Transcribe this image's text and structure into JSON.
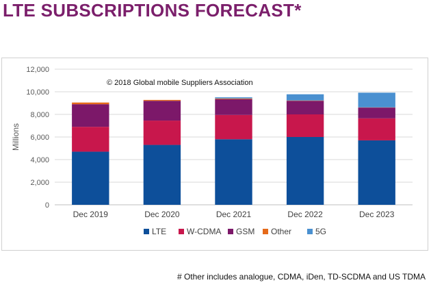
{
  "page": {
    "title": "LTE SUBSCRIPTIONS FORECAST*",
    "footnote": "# Other includes analogue, CDMA, iDen, TD-SCDMA and US TDMA"
  },
  "chart_data": {
    "type": "bar",
    "stacked": true,
    "title": "",
    "annotation": "© 2018 Global mobile Suppliers Association",
    "xlabel": "",
    "ylabel": "Millions",
    "ylim": [
      0,
      12000
    ],
    "yticks": [
      0,
      2000,
      4000,
      6000,
      8000,
      10000,
      12000
    ],
    "ytick_labels": [
      "0",
      "2,000",
      "4,000",
      "6,000",
      "8,000",
      "10,000",
      "12,000"
    ],
    "grid": true,
    "legend_position": "bottom-center",
    "categories": [
      "Dec 2019",
      "Dec 2020",
      "Dec 2021",
      "Dec 2022",
      "Dec 2023"
    ],
    "series": [
      {
        "name": "LTE",
        "color": "#0d4f9a",
        "values": [
          4700,
          5300,
          5800,
          6000,
          5700
        ]
      },
      {
        "name": "W-CDMA",
        "color": "#c8174c",
        "values": [
          2200,
          2150,
          2150,
          2000,
          1950
        ]
      },
      {
        "name": "GSM",
        "color": "#7c1869",
        "values": [
          2000,
          1750,
          1400,
          1200,
          950
        ]
      },
      {
        "name": "Other",
        "color": "#e56a1a",
        "values": [
          150,
          80,
          60,
          30,
          20
        ]
      },
      {
        "name": "5G",
        "color": "#4a90d0",
        "values": [
          0,
          0,
          100,
          550,
          1300
        ]
      }
    ]
  }
}
